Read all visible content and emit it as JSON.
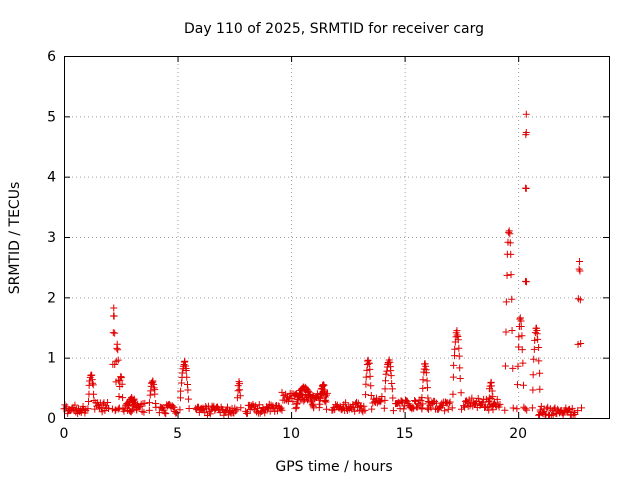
{
  "chart_data": {
    "type": "scatter",
    "title": "Day 110 of 2025, SRMTID for receiver carg",
    "xlabel": "GPS time / hours",
    "ylabel": "SRMTID / TECUs",
    "xlim": [
      0,
      24
    ],
    "ylim": [
      0,
      6
    ],
    "xticks": [
      0,
      5,
      10,
      15,
      20
    ],
    "yticks": [
      0,
      1,
      2,
      3,
      4,
      5,
      6
    ],
    "grid": true,
    "marker": "plus",
    "color": "#e00000",
    "baseline_segments": [
      {
        "x0": 0.0,
        "x1": 1.0,
        "y": 0.15
      },
      {
        "x0": 1.4,
        "x1": 2.0,
        "y": 0.18
      },
      {
        "x0": 2.6,
        "x1": 3.6,
        "y": 0.17
      },
      {
        "x0": 4.2,
        "x1": 5.0,
        "y": 0.15
      },
      {
        "x0": 5.8,
        "x1": 7.6,
        "y": 0.12
      },
      {
        "x0": 8.0,
        "x1": 9.6,
        "y": 0.15
      },
      {
        "x0": 9.6,
        "x1": 11.6,
        "y": 0.35
      },
      {
        "x0": 11.8,
        "x1": 13.2,
        "y": 0.18
      },
      {
        "x0": 13.6,
        "x1": 14.0,
        "y": 0.28
      },
      {
        "x0": 14.6,
        "x1": 15.8,
        "y": 0.22
      },
      {
        "x0": 16.0,
        "x1": 17.0,
        "y": 0.2
      },
      {
        "x0": 17.6,
        "x1": 19.2,
        "y": 0.25
      },
      {
        "x0": 20.9,
        "x1": 22.5,
        "y": 0.12
      }
    ],
    "peaks": [
      {
        "x": 1.2,
        "y": 0.7,
        "w": 0.15
      },
      {
        "x": 2.2,
        "y": 1.8,
        "w": 0.06
      },
      {
        "x": 2.35,
        "y": 1.2,
        "w": 0.08
      },
      {
        "x": 2.5,
        "y": 0.7,
        "w": 0.1
      },
      {
        "x": 3.0,
        "y": 0.32,
        "w": 0.2
      },
      {
        "x": 3.9,
        "y": 0.6,
        "w": 0.15
      },
      {
        "x": 5.3,
        "y": 0.92,
        "w": 0.2
      },
      {
        "x": 7.7,
        "y": 0.58,
        "w": 0.08
      },
      {
        "x": 10.6,
        "y": 0.5,
        "w": 0.4
      },
      {
        "x": 11.4,
        "y": 0.55,
        "w": 0.15
      },
      {
        "x": 13.4,
        "y": 0.95,
        "w": 0.15
      },
      {
        "x": 14.3,
        "y": 0.95,
        "w": 0.2
      },
      {
        "x": 15.9,
        "y": 0.88,
        "w": 0.15
      },
      {
        "x": 17.3,
        "y": 1.42,
        "w": 0.2
      },
      {
        "x": 18.8,
        "y": 0.6,
        "w": 0.1
      },
      {
        "x": 19.6,
        "y": 3.1,
        "w": 0.18
      },
      {
        "x": 20.1,
        "y": 1.65,
        "w": 0.15
      },
      {
        "x": 20.35,
        "y": 5.02,
        "w": 0.03
      },
      {
        "x": 20.8,
        "y": 1.5,
        "w": 0.18
      },
      {
        "x": 22.7,
        "y": 2.6,
        "w": 0.08
      }
    ]
  }
}
